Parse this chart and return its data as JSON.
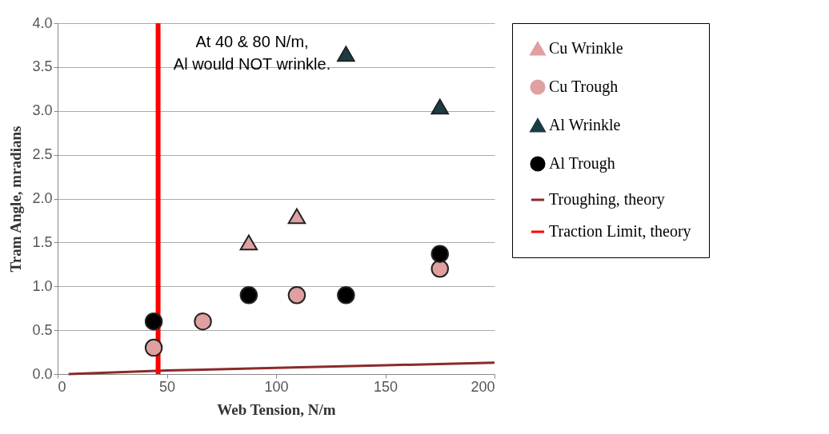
{
  "chart_data": {
    "type": "scatter",
    "xlabel": "Web Tension, N/m",
    "ylabel": "Tram Angle, mradians",
    "xlim": [
      0,
      200
    ],
    "xticks": [
      0,
      50,
      100,
      150,
      200
    ],
    "ylim": [
      0,
      4
    ],
    "yticks": [
      {
        "value": 0,
        "label": "0.0"
      },
      {
        "value": 0.5,
        "label": "0.5"
      },
      {
        "value": 1,
        "label": "1.0"
      },
      {
        "value": 1.5,
        "label": "1.5"
      },
      {
        "value": 2,
        "label": "2.0"
      },
      {
        "value": 2.5,
        "label": "2.5"
      },
      {
        "value": 3,
        "label": "3.0"
      },
      {
        "value": 3.5,
        "label": "3.5"
      },
      {
        "value": 4,
        "label": "4.0"
      }
    ],
    "grid": "y",
    "legend": "right",
    "annotations": [
      "At 40 & 80 N/m,\nAl would NOT wrinkle."
    ],
    "series": [
      {
        "name": "Cu Wrinkle",
        "marker": "triangle",
        "color": "#e0a0a0",
        "x": [
          87.5,
          109.5
        ],
        "values": [
          1.5,
          1.8
        ]
      },
      {
        "name": "Cu Trough",
        "marker": "circle",
        "color": "#e0a0a0",
        "x": [
          44,
          66.5,
          109.5,
          175
        ],
        "values": [
          0.3,
          0.6,
          0.9,
          1.2
        ]
      },
      {
        "name": "Al Wrinkle",
        "marker": "triangle",
        "color": "#1a3d44",
        "x": [
          132,
          175
        ],
        "values": [
          3.65,
          3.05
        ]
      },
      {
        "name": "Al Trough",
        "marker": "circle",
        "color": "#000000",
        "x": [
          44,
          87.5,
          132,
          175
        ],
        "values": [
          0.6,
          0.9,
          0.9,
          1.37
        ]
      },
      {
        "name": "Troughing, theory",
        "type": "line",
        "color": "#8b2a2a",
        "x": [
          5,
          50,
          100,
          150,
          200
        ],
        "values": [
          0,
          0.04,
          0.07,
          0.1,
          0.13
        ]
      },
      {
        "name": "Traction Limit, theory",
        "type": "line",
        "color": "#ff0000",
        "x": [
          46,
          46
        ],
        "values": [
          0,
          4
        ]
      }
    ]
  }
}
